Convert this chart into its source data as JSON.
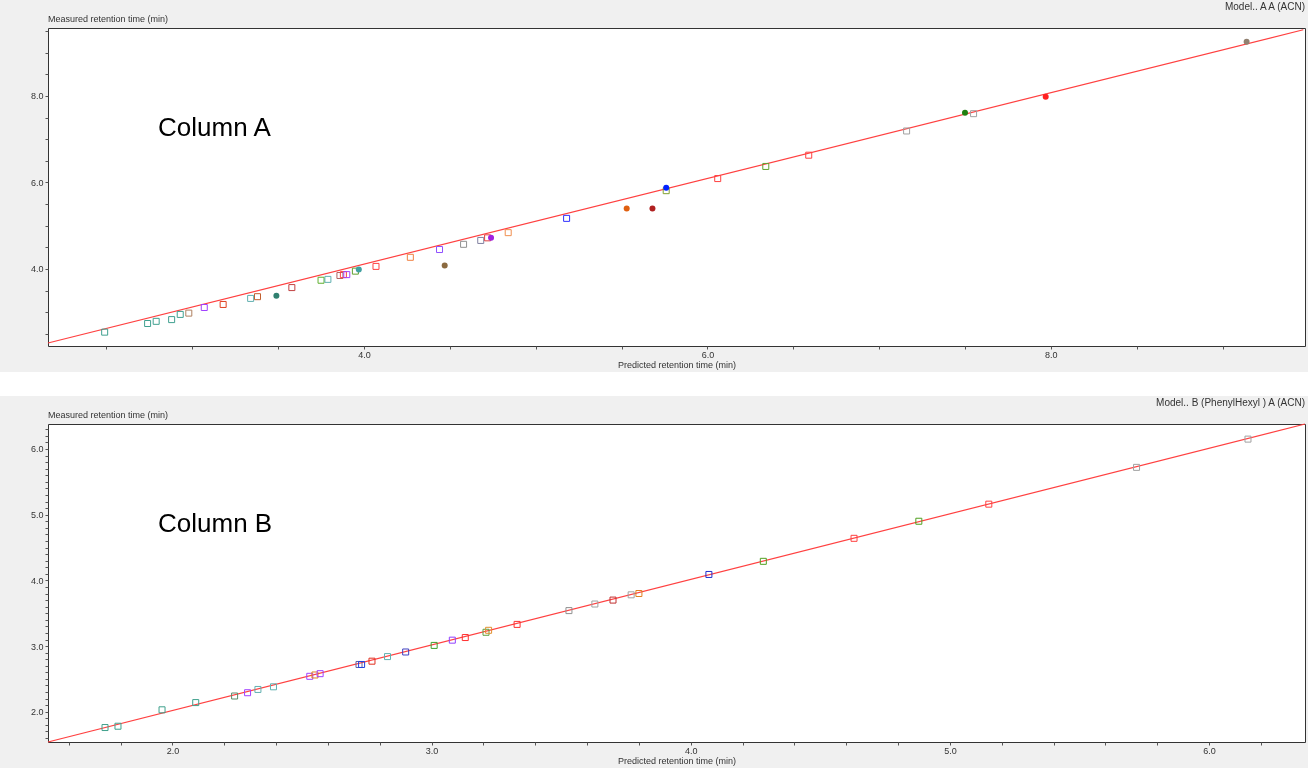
{
  "chart_data": [
    {
      "type": "scatter",
      "title": "Model.. A A (ACN)",
      "xlabel": "Predicted retention time (min)",
      "ylabel": "Measured retention time (min)",
      "annotations": [
        "Column A"
      ],
      "legend": false,
      "grid": false,
      "xlim": [
        2.16,
        9.48
      ],
      "ylim": [
        2.22,
        9.57
      ],
      "xticks": [
        {
          "value": 2.5,
          "label": null
        },
        {
          "value": 3,
          "label": null
        },
        {
          "value": 3.5,
          "label": null
        },
        {
          "value": 4,
          "label": "4.0"
        },
        {
          "value": 4.5,
          "label": null
        },
        {
          "value": 5,
          "label": null
        },
        {
          "value": 5.5,
          "label": null
        },
        {
          "value": 6,
          "label": "6.0"
        },
        {
          "value": 6.5,
          "label": null
        },
        {
          "value": 7,
          "label": null
        },
        {
          "value": 7.5,
          "label": null
        },
        {
          "value": 8,
          "label": "8.0"
        },
        {
          "value": 8.5,
          "label": null
        },
        {
          "value": 9,
          "label": null
        }
      ],
      "yticks": [
        {
          "value": 2.5,
          "label": null
        },
        {
          "value": 3,
          "label": null
        },
        {
          "value": 3.5,
          "label": null
        },
        {
          "value": 4,
          "label": "4.0"
        },
        {
          "value": 4.5,
          "label": null
        },
        {
          "value": 5,
          "label": null
        },
        {
          "value": 5.5,
          "label": null
        },
        {
          "value": 6,
          "label": "6.0"
        },
        {
          "value": 6.5,
          "label": null
        },
        {
          "value": 7,
          "label": null
        },
        {
          "value": 7.5,
          "label": null
        },
        {
          "value": 8,
          "label": "8.0"
        },
        {
          "value": 8.5,
          "label": null
        },
        {
          "value": 9,
          "label": null
        },
        {
          "value": 9.5,
          "label": null
        }
      ],
      "series": [
        {
          "type": "line",
          "color": "#ff4040",
          "x": [
            2.16,
            9.47
          ],
          "values": [
            2.29,
            9.53
          ]
        },
        {
          "type": "scatter",
          "marker": "square",
          "x": [
            2.49,
            2.74,
            2.79,
            2.88,
            2.93,
            2.98,
            3.07,
            3.18,
            3.34,
            3.38,
            3.58,
            3.75,
            3.79,
            3.86,
            3.88,
            3.9,
            3.95,
            4.07,
            4.27,
            4.44,
            4.58,
            4.68,
            4.72,
            4.84,
            5.18,
            5.76,
            6.06,
            6.34,
            6.59,
            7.16,
            7.55
          ],
          "values": [
            2.54,
            2.74,
            2.79,
            2.83,
            2.95,
            2.98,
            3.11,
            3.18,
            3.32,
            3.36,
            3.57,
            3.74,
            3.76,
            3.85,
            3.87,
            3.87,
            3.95,
            4.06,
            4.27,
            4.45,
            4.57,
            4.66,
            4.72,
            4.84,
            5.17,
            5.81,
            6.09,
            6.37,
            6.63,
            7.19,
            7.59
          ],
          "colors": [
            "#40a090",
            "#40a090",
            "#40a090",
            "#40a090",
            "#40a090",
            "#b08060",
            "#a040ff",
            "#e04020",
            "#60b0b0",
            "#c06030",
            "#c04040",
            "#60b030",
            "#60b0b0",
            "#b06060",
            "#ff4040",
            "#a040ff",
            "#60a030",
            "#ff4040",
            "#f08040",
            "#9050ff",
            "#909090",
            "#8080a0",
            "#e04040",
            "#f09050",
            "#3030ff",
            "#80a030",
            "#ff4040",
            "#60a030",
            "#ff4040",
            "#a0a0a0",
            "#a0a0a0"
          ]
        },
        {
          "type": "scatter",
          "marker": "circle",
          "x": [
            3.49,
            3.97,
            4.47,
            4.74,
            5.53,
            5.68,
            5.76,
            7.5,
            7.97,
            9.14
          ],
          "values": [
            3.38,
            3.99,
            4.08,
            4.72,
            5.4,
            5.4,
            5.88,
            7.61,
            7.98,
            9.25
          ],
          "colors": [
            "#308070",
            "#40a0a0",
            "#8b6a40",
            "#a020e0",
            "#e06010",
            "#b02020",
            "#0020ff",
            "#208010",
            "#ff2020",
            "#908070"
          ]
        }
      ]
    },
    {
      "type": "scatter",
      "title": "Model.. B (PhenylHexyl ) A (ACN)",
      "xlabel": "Predicted retention time (min)",
      "ylabel": "Measured retention time (min)",
      "annotations": [
        "Column B"
      ],
      "legend": false,
      "grid": false,
      "xlim": [
        1.52,
        6.37
      ],
      "ylim": [
        1.54,
        6.38
      ],
      "xticks": [
        {
          "value": 1.6,
          "label": null
        },
        {
          "value": 1.8,
          "label": null
        },
        {
          "value": 2,
          "label": "2.0"
        },
        {
          "value": 2.2,
          "label": null
        },
        {
          "value": 2.4,
          "label": null
        },
        {
          "value": 2.6,
          "label": null
        },
        {
          "value": 2.8,
          "label": null
        },
        {
          "value": 3,
          "label": "3.0"
        },
        {
          "value": 3.2,
          "label": null
        },
        {
          "value": 3.4,
          "label": null
        },
        {
          "value": 3.6,
          "label": null
        },
        {
          "value": 3.8,
          "label": null
        },
        {
          "value": 4,
          "label": "4.0"
        },
        {
          "value": 4.2,
          "label": null
        },
        {
          "value": 4.4,
          "label": null
        },
        {
          "value": 4.6,
          "label": null
        },
        {
          "value": 4.8,
          "label": null
        },
        {
          "value": 5,
          "label": "5.0"
        },
        {
          "value": 5.2,
          "label": null
        },
        {
          "value": 5.4,
          "label": null
        },
        {
          "value": 5.6,
          "label": null
        },
        {
          "value": 5.8,
          "label": null
        },
        {
          "value": 6,
          "label": "6.0"
        },
        {
          "value": 6.2,
          "label": null
        }
      ],
      "yticks": [
        {
          "value": 1.6,
          "label": null
        },
        {
          "value": 1.7,
          "label": null
        },
        {
          "value": 1.8,
          "label": null
        },
        {
          "value": 1.9,
          "label": null
        },
        {
          "value": 2,
          "label": "2.0"
        },
        {
          "value": 2.1,
          "label": null
        },
        {
          "value": 2.2,
          "label": null
        },
        {
          "value": 2.3,
          "label": null
        },
        {
          "value": 2.4,
          "label": null
        },
        {
          "value": 2.5,
          "label": null
        },
        {
          "value": 2.6,
          "label": null
        },
        {
          "value": 2.7,
          "label": null
        },
        {
          "value": 2.8,
          "label": null
        },
        {
          "value": 2.9,
          "label": null
        },
        {
          "value": 3,
          "label": "3.0"
        },
        {
          "value": 3.1,
          "label": null
        },
        {
          "value": 3.2,
          "label": null
        },
        {
          "value": 3.3,
          "label": null
        },
        {
          "value": 3.4,
          "label": null
        },
        {
          "value": 3.5,
          "label": null
        },
        {
          "value": 3.6,
          "label": null
        },
        {
          "value": 3.7,
          "label": null
        },
        {
          "value": 3.8,
          "label": null
        },
        {
          "value": 3.9,
          "label": null
        },
        {
          "value": 4,
          "label": "4.0"
        },
        {
          "value": 4.1,
          "label": null
        },
        {
          "value": 4.2,
          "label": null
        },
        {
          "value": 4.3,
          "label": null
        },
        {
          "value": 4.4,
          "label": null
        },
        {
          "value": 4.5,
          "label": null
        },
        {
          "value": 4.6,
          "label": null
        },
        {
          "value": 4.7,
          "label": null
        },
        {
          "value": 4.8,
          "label": null
        },
        {
          "value": 4.9,
          "label": null
        },
        {
          "value": 5,
          "label": "5.0"
        },
        {
          "value": 5.1,
          "label": null
        },
        {
          "value": 5.2,
          "label": null
        },
        {
          "value": 5.3,
          "label": null
        },
        {
          "value": 5.4,
          "label": null
        },
        {
          "value": 5.5,
          "label": null
        },
        {
          "value": 5.6,
          "label": null
        },
        {
          "value": 5.7,
          "label": null
        },
        {
          "value": 5.8,
          "label": null
        },
        {
          "value": 5.9,
          "label": null
        },
        {
          "value": 6,
          "label": "6.0"
        },
        {
          "value": 6.1,
          "label": null
        },
        {
          "value": 6.2,
          "label": null
        },
        {
          "value": 6.3,
          "label": null
        }
      ],
      "series": [
        {
          "type": "line",
          "color": "#ff4040",
          "x": [
            1.52,
            6.37
          ],
          "values": [
            1.54,
            6.38
          ]
        },
        {
          "type": "scatter",
          "marker": "square",
          "x": [
            1.74,
            1.79,
            1.96,
            2.09,
            2.24,
            2.29,
            2.33,
            2.39,
            2.53,
            2.55,
            2.57,
            2.72,
            2.73,
            2.77,
            2.83,
            2.9,
            3.01,
            3.08,
            3.13,
            3.21,
            3.22,
            3.33,
            3.53,
            3.63,
            3.7,
            3.77,
            3.8,
            4.07,
            4.28,
            4.63,
            4.88,
            5.15,
            5.72,
            6.15
          ],
          "values": [
            1.76,
            1.78,
            2.03,
            2.14,
            2.24,
            2.29,
            2.34,
            2.38,
            2.54,
            2.56,
            2.58,
            2.72,
            2.72,
            2.77,
            2.84,
            2.91,
            3.01,
            3.09,
            3.13,
            3.21,
            3.24,
            3.33,
            3.54,
            3.64,
            3.7,
            3.78,
            3.8,
            4.09,
            4.29,
            4.64,
            4.9,
            5.16,
            5.72,
            6.15
          ],
          "colors": [
            "#3fa08c",
            "#3fa08c",
            "#3fa08c",
            "#3fa08c",
            "#5a8a6a",
            "#a040ff",
            "#60b0b0",
            "#60b0b0",
            "#a040ff",
            "#e08020",
            "#a040ff",
            "#6060a0",
            "#2040e0",
            "#e03020",
            "#60b0b0",
            "#4040c0",
            "#40a030",
            "#9040ff",
            "#ff3030",
            "#60a040",
            "#e09030",
            "#ff3030",
            "#909090",
            "#a0a0a0",
            "#c03030",
            "#a0a0a0",
            "#e08020",
            "#2030d0",
            "#50a020",
            "#ff4040",
            "#50a020",
            "#ff4040",
            "#a0a0a0",
            "#a0a0a0"
          ]
        }
      ]
    }
  ]
}
